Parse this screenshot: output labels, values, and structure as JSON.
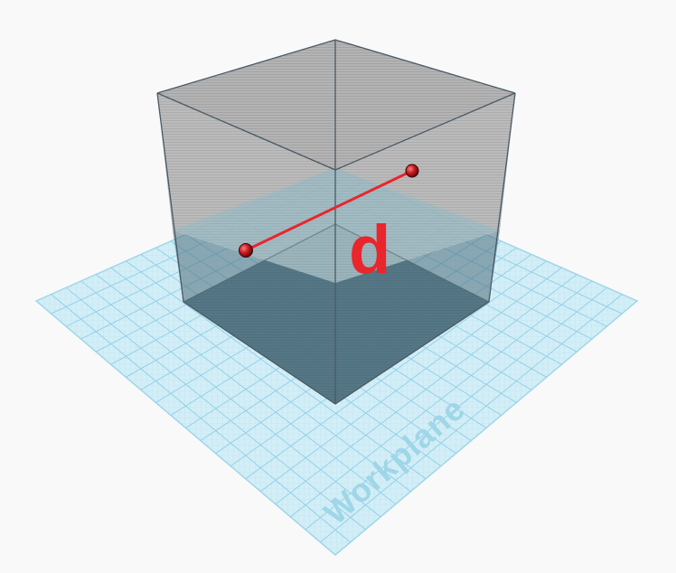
{
  "workplane": {
    "label": "Workplane",
    "grid_color": "#8fcfe6",
    "fill_color": "#d3eef7"
  },
  "cube": {
    "upper_color": "#a9a9a9",
    "lower_color": "#4f7180",
    "edge_color": "#4a5a66"
  },
  "measurement": {
    "label": "d",
    "line_color": "#e8262c",
    "endpoint_color": "#b0181d"
  },
  "icons": {
    "endpoint_a": "ruler-endpoint-icon",
    "endpoint_b": "ruler-endpoint-icon"
  }
}
